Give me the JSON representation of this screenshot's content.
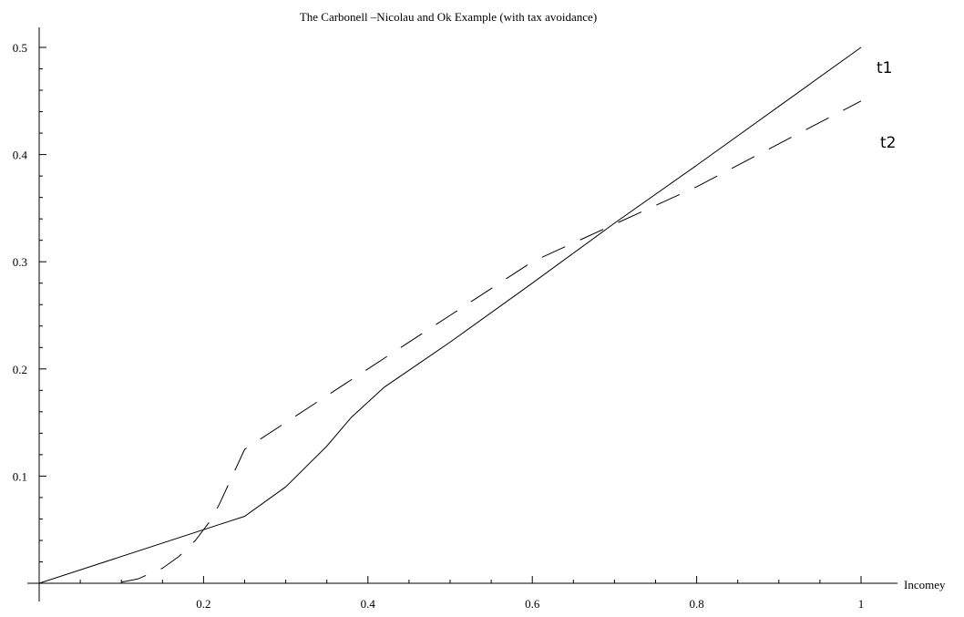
{
  "chart_data": {
    "type": "line",
    "title": "The Carbonell –Nicolau and Ok Example (with tax avoidance)",
    "xlabel": "Incomey",
    "ylabel": "",
    "xlim": [
      0,
      1
    ],
    "ylim": [
      0,
      0.5
    ],
    "grid": false,
    "legend": "none",
    "x_ticks": [
      0.2,
      0.4,
      0.6,
      0.8,
      1
    ],
    "x_tick_labels": [
      "0.2",
      "0.4",
      "0.6",
      "0.8",
      "1"
    ],
    "y_ticks": [
      0.1,
      0.2,
      0.3,
      0.4,
      0.5
    ],
    "y_tick_labels": [
      "0.1",
      "0.2",
      "0.3",
      "0.4",
      "0.5"
    ],
    "series": [
      {
        "name": "t1",
        "style": "solid",
        "color": "#000000",
        "points": [
          [
            0,
            0
          ],
          [
            0.25,
            0.0625
          ],
          [
            0.3,
            0.09
          ],
          [
            0.35,
            0.128
          ],
          [
            0.38,
            0.155
          ],
          [
            0.42,
            0.183
          ],
          [
            0.5,
            0.225
          ],
          [
            0.6,
            0.28
          ],
          [
            0.7,
            0.336
          ],
          [
            0.8,
            0.39
          ],
          [
            0.9,
            0.445
          ],
          [
            1,
            0.5
          ]
        ]
      },
      {
        "name": "t2",
        "style": "dashed",
        "color": "#000000",
        "points": [
          [
            0.1,
            0.001
          ],
          [
            0.12,
            0.004
          ],
          [
            0.15,
            0.014
          ],
          [
            0.17,
            0.025
          ],
          [
            0.19,
            0.04
          ],
          [
            0.2,
            0.05
          ],
          [
            0.21,
            0.06
          ],
          [
            0.22,
            0.075
          ],
          [
            0.25,
            0.125
          ],
          [
            0.3,
            0.15
          ],
          [
            0.35,
            0.175
          ],
          [
            0.4,
            0.2
          ],
          [
            0.5,
            0.25
          ],
          [
            0.6,
            0.3
          ],
          [
            0.7,
            0.335
          ],
          [
            0.8,
            0.37
          ],
          [
            0.9,
            0.41
          ],
          [
            1,
            0.45
          ]
        ]
      }
    ]
  }
}
